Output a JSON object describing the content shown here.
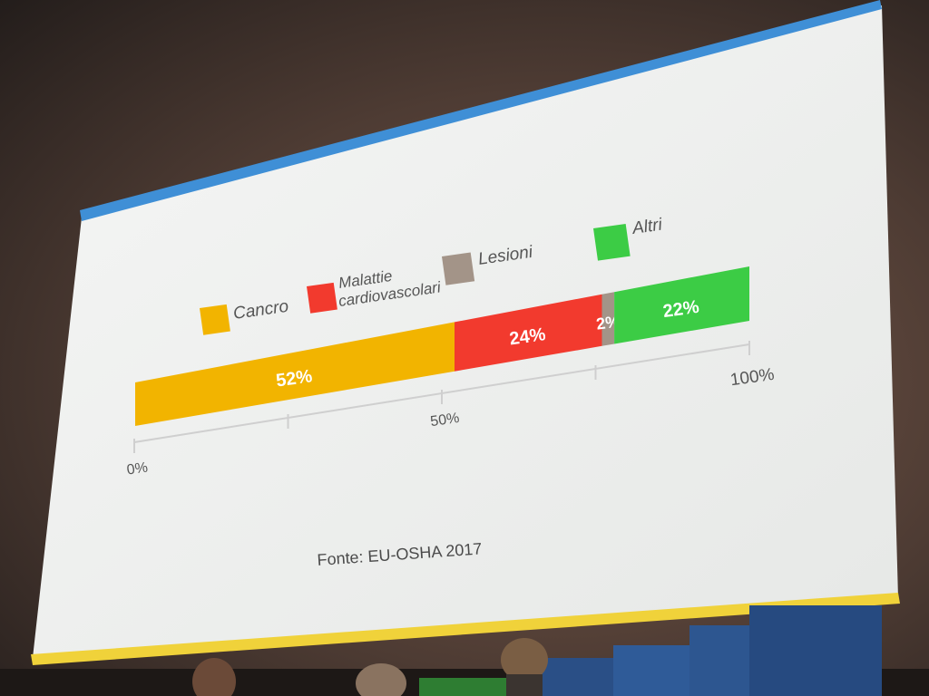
{
  "chart_data": {
    "type": "bar",
    "orientation": "horizontal-stacked",
    "series": [
      {
        "name": "Cancro",
        "value": 52,
        "label": "52%",
        "color": "#f2b400"
      },
      {
        "name": "Malattie cardiovascolari",
        "name_lines": [
          "Malattie",
          "cardiovascolari"
        ],
        "value": 24,
        "label": "24%",
        "color": "#f23a2e"
      },
      {
        "name": "Lesioni",
        "value": 2,
        "label": "2%",
        "color": "#a39488"
      },
      {
        "name": "Altri",
        "value": 22,
        "label": "22%",
        "color": "#3ccc45"
      }
    ],
    "xlim": [
      0,
      100
    ],
    "ticks": [
      {
        "value": 0,
        "label": "0%"
      },
      {
        "value": 25,
        "label": ""
      },
      {
        "value": 50,
        "label": "50%"
      },
      {
        "value": 75,
        "label": ""
      },
      {
        "value": 100,
        "label": "100%"
      }
    ],
    "legend_position": "top",
    "grid": false,
    "source": "Fonte: EU-OSHA 2017"
  },
  "colors": {
    "slide_background": "#f1f2f1",
    "top_border": "#3f8fd6",
    "bottom_border": "#f0d23a",
    "axis": "#cfcfcf",
    "text": "#555555"
  },
  "icons": [
    "projection-screen",
    "audience-heads",
    "stage-blocks"
  ]
}
